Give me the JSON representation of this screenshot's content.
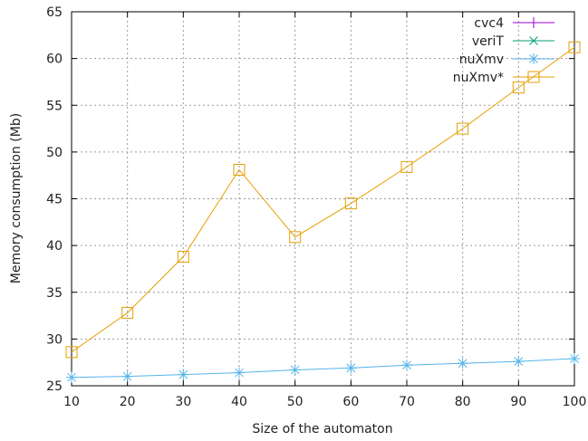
{
  "chart_data": {
    "type": "line",
    "title": "",
    "xlabel": "Size of the automaton",
    "ylabel": "Memory consumption (Mb)",
    "xlim": [
      10,
      100
    ],
    "ylim": [
      25,
      65
    ],
    "x_ticks": [
      "10",
      "20",
      "30",
      "40",
      "50",
      "60",
      "70",
      "80",
      "90",
      "100"
    ],
    "y_ticks": [
      "25",
      "30",
      "35",
      "40",
      "45",
      "50",
      "55",
      "60",
      "65"
    ],
    "grid": true,
    "legend_position": "top-right",
    "series": [
      {
        "name": "cvc4",
        "color": "#9400d3",
        "marker": "plus",
        "x": [],
        "y": []
      },
      {
        "name": "veriT",
        "color": "#009e73",
        "marker": "cross",
        "x": [],
        "y": []
      },
      {
        "name": "nuXmv",
        "color": "#56b4e9",
        "marker": "star",
        "x": [
          10,
          20,
          30,
          40,
          50,
          60,
          70,
          80,
          90,
          100
        ],
        "y": [
          25.9,
          26.0,
          26.2,
          26.4,
          26.7,
          26.9,
          27.2,
          27.4,
          27.6,
          27.9
        ]
      },
      {
        "name": "nuXmv*",
        "color": "#e69f00",
        "marker": "square",
        "x": [
          10,
          20,
          30,
          40,
          50,
          60,
          70,
          80,
          90,
          100
        ],
        "y": [
          28.6,
          32.8,
          38.8,
          48.1,
          40.9,
          44.5,
          48.4,
          52.5,
          56.9,
          61.2
        ]
      }
    ]
  }
}
